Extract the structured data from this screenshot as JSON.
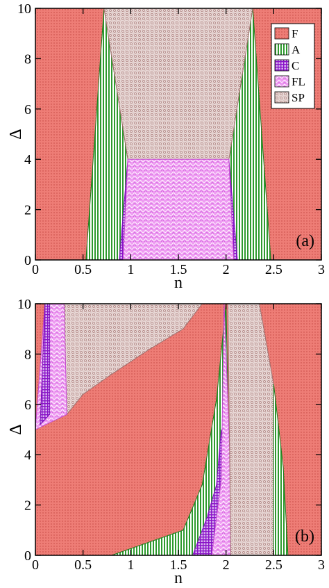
{
  "chart_data": [
    {
      "type": "area",
      "panel_label": "(a)",
      "xlabel": "n",
      "ylabel": "Δ",
      "xlim": [
        0,
        3
      ],
      "ylim": [
        0,
        10
      ],
      "xticks": [
        "0",
        "0.5",
        "1",
        "1.5",
        "2",
        "2.5",
        "3"
      ],
      "yticks": [
        "0",
        "2",
        "4",
        "6",
        "8",
        "10"
      ],
      "legend": {
        "position": "top-right",
        "entries": [
          "F",
          "A",
          "C",
          "FL",
          "SP"
        ]
      },
      "regions": [
        {
          "name": "F",
          "polygon": [
            [
              0,
              0
            ],
            [
              3,
              0
            ],
            [
              3,
              10
            ],
            [
              0,
              10
            ]
          ]
        },
        {
          "name": "A",
          "polygon": [
            [
              0.53,
              0
            ],
            [
              0.72,
              10
            ],
            [
              0.97,
              4
            ],
            [
              0.98,
              0
            ]
          ]
        },
        {
          "name": "A",
          "polygon": [
            [
              2.02,
              0
            ],
            [
              2.03,
              4
            ],
            [
              2.28,
              10
            ],
            [
              2.47,
              0
            ]
          ]
        },
        {
          "name": "SP",
          "polygon": [
            [
              0.72,
              10
            ],
            [
              2.28,
              10
            ],
            [
              2.03,
              4
            ],
            [
              0.97,
              4
            ]
          ]
        },
        {
          "name": "C",
          "polygon": [
            [
              0.88,
              0
            ],
            [
              0.97,
              4
            ],
            [
              0.98,
              0
            ]
          ]
        },
        {
          "name": "C",
          "polygon": [
            [
              2.02,
              0
            ],
            [
              2.03,
              4
            ],
            [
              2.12,
              0
            ]
          ]
        },
        {
          "name": "FL",
          "polygon": [
            [
              0.92,
              0
            ],
            [
              0.97,
              4
            ],
            [
              2.03,
              4
            ],
            [
              2.08,
              0
            ]
          ]
        }
      ]
    },
    {
      "type": "area",
      "panel_label": "(b)",
      "xlabel": "n",
      "ylabel": "Δ",
      "xlim": [
        0,
        3
      ],
      "ylim": [
        0,
        10
      ],
      "xticks": [
        "0",
        "0.5",
        "1",
        "1.5",
        "2",
        "2.5",
        "3"
      ],
      "yticks": [
        "0",
        "2",
        "4",
        "6",
        "8",
        "10"
      ],
      "regions": [
        {
          "name": "F",
          "polygon": [
            [
              0,
              0
            ],
            [
              3,
              0
            ],
            [
              3,
              10
            ],
            [
              0,
              10
            ]
          ]
        },
        {
          "name": "SP",
          "polygon": [
            [
              0.3,
              10
            ],
            [
              1.75,
              10
            ],
            [
              1.55,
              9.0
            ],
            [
              1.2,
              8.2
            ],
            [
              0.8,
              7.2
            ],
            [
              0.5,
              6.4
            ],
            [
              0.33,
              5.6
            ]
          ]
        },
        {
          "name": "FL",
          "polygon": [
            [
              0,
              5
            ],
            [
              0.1,
              10
            ],
            [
              0.3,
              10
            ],
            [
              0.33,
              5.6
            ]
          ]
        },
        {
          "name": "C",
          "polygon": [
            [
              0.05,
              5.2
            ],
            [
              0.1,
              10
            ],
            [
              0.15,
              10
            ],
            [
              0.15,
              5.6
            ]
          ]
        },
        {
          "name": "A",
          "polygon": [
            [
              0.8,
              0
            ],
            [
              1.55,
              1.0
            ],
            [
              1.75,
              2.8
            ],
            [
              1.9,
              6.2
            ],
            [
              2.0,
              10
            ],
            [
              2.05,
              0
            ]
          ]
        },
        {
          "name": "C",
          "polygon": [
            [
              1.65,
              0
            ],
            [
              1.8,
              1.5
            ],
            [
              1.9,
              2.8
            ],
            [
              1.95,
              5.0
            ],
            [
              2.05,
              0
            ]
          ]
        },
        {
          "name": "FL",
          "polygon": [
            [
              1.85,
              0
            ],
            [
              1.95,
              3.0
            ],
            [
              1.98,
              10
            ],
            [
              2.08,
              0
            ]
          ]
        },
        {
          "name": "SP",
          "polygon": [
            [
              2.05,
              0
            ],
            [
              2.02,
              10
            ],
            [
              2.35,
              10
            ],
            [
              2.5,
              6.8
            ],
            [
              2.5,
              0
            ]
          ]
        },
        {
          "name": "A",
          "polygon": [
            [
              2.5,
              0
            ],
            [
              2.5,
              6.8
            ],
            [
              2.6,
              3.5
            ],
            [
              2.65,
              0
            ]
          ]
        }
      ]
    }
  ]
}
